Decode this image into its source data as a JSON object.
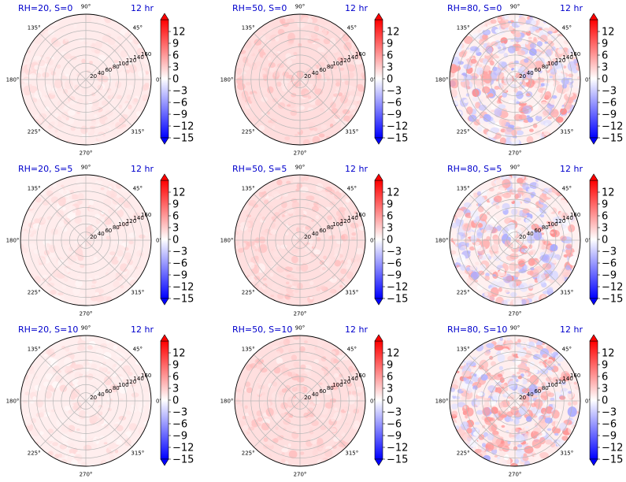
{
  "figure": {
    "colormap": "bwr",
    "colors": {
      "negative": "#0000ff",
      "zero": "#ffffff",
      "positive": "#ff0000",
      "title": "#0000cc",
      "grid": "#b8b8b8"
    }
  },
  "chart_data": [
    {
      "type": "heatmap",
      "projection": "polar",
      "title_left": "RH=20, S=0",
      "title_right": "12 hr",
      "bias": 1.2,
      "amplitude": 1.0,
      "angle_labels": [
        "0°",
        "45°",
        "90°",
        "135°",
        "180°",
        "225°",
        "270°",
        "315°"
      ],
      "radial_ticks": [
        20,
        40,
        60,
        80,
        100,
        120,
        140,
        160
      ],
      "rlim": [
        0,
        160
      ],
      "colorbar": {
        "ticks": [
          "12",
          "9",
          "6",
          "3",
          "0",
          "−3",
          "−6",
          "−9",
          "−12",
          "−15"
        ],
        "vmin": -15,
        "vmax": 15
      }
    },
    {
      "type": "heatmap",
      "projection": "polar",
      "title_left": "RH=50, S=0",
      "title_right": "12 hr",
      "bias": 2.0,
      "amplitude": 1.5,
      "angle_labels": [
        "0°",
        "45°",
        "90°",
        "135°",
        "180°",
        "225°",
        "270°",
        "315°"
      ],
      "radial_ticks": [
        20,
        40,
        60,
        80,
        100,
        120,
        140,
        160
      ],
      "rlim": [
        0,
        160
      ],
      "colorbar": {
        "ticks": [
          "12",
          "9",
          "6",
          "3",
          "0",
          "−3",
          "−6",
          "−9",
          "−12",
          "−15"
        ],
        "vmin": -15,
        "vmax": 15
      }
    },
    {
      "type": "heatmap",
      "projection": "polar",
      "title_left": "RH=80, S=0",
      "title_right": "12 hr",
      "bias": 0.8,
      "amplitude": 6.0,
      "angle_labels": [
        "0°",
        "45°",
        "90°",
        "135°",
        "180°",
        "225°",
        "270°",
        "315°"
      ],
      "radial_ticks": [
        20,
        40,
        60,
        80,
        100,
        120,
        140,
        160
      ],
      "rlim": [
        0,
        160
      ],
      "colorbar": {
        "ticks": [
          "12",
          "9",
          "6",
          "3",
          "0",
          "−3",
          "−6",
          "−9",
          "−12",
          "−15"
        ],
        "vmin": -15,
        "vmax": 15
      }
    },
    {
      "type": "heatmap",
      "projection": "polar",
      "title_left": "RH=20, S=5",
      "title_right": "12 hr",
      "bias": 1.1,
      "amplitude": 1.0,
      "angle_labels": [
        "0°",
        "45°",
        "90°",
        "135°",
        "180°",
        "225°",
        "270°",
        "315°"
      ],
      "radial_ticks": [
        20,
        40,
        60,
        80,
        100,
        120,
        140,
        160
      ],
      "rlim": [
        0,
        160
      ],
      "colorbar": {
        "ticks": [
          "12",
          "9",
          "6",
          "3",
          "0",
          "−3",
          "−6",
          "−9",
          "−12",
          "−15"
        ],
        "vmin": -15,
        "vmax": 15
      }
    },
    {
      "type": "heatmap",
      "projection": "polar",
      "title_left": "RH=50, S=5",
      "title_right": "12 hr",
      "bias": 1.9,
      "amplitude": 1.6,
      "angle_labels": [
        "0°",
        "45°",
        "90°",
        "135°",
        "180°",
        "225°",
        "270°",
        "315°"
      ],
      "radial_ticks": [
        20,
        40,
        60,
        80,
        100,
        120,
        140,
        160
      ],
      "rlim": [
        0,
        160
      ],
      "colorbar": {
        "ticks": [
          "12",
          "9",
          "6",
          "3",
          "0",
          "−3",
          "−6",
          "−9",
          "−12",
          "−15"
        ],
        "vmin": -15,
        "vmax": 15
      }
    },
    {
      "type": "heatmap",
      "projection": "polar",
      "title_left": "RH=80, S=5",
      "title_right": "12 hr",
      "bias": 0.9,
      "amplitude": 6.0,
      "angle_labels": [
        "0°",
        "45°",
        "90°",
        "135°",
        "180°",
        "225°",
        "270°",
        "315°"
      ],
      "radial_ticks": [
        20,
        40,
        60,
        80,
        100,
        120,
        140,
        160
      ],
      "rlim": [
        0,
        160
      ],
      "colorbar": {
        "ticks": [
          "12",
          "9",
          "6",
          "3",
          "0",
          "−3",
          "−6",
          "−9",
          "−12",
          "−15"
        ],
        "vmin": -15,
        "vmax": 15
      }
    },
    {
      "type": "heatmap",
      "projection": "polar",
      "title_left": "RH=20, S=10",
      "title_right": "12 hr",
      "bias": 1.0,
      "amplitude": 1.1,
      "angle_labels": [
        "0°",
        "45°",
        "90°",
        "135°",
        "180°",
        "225°",
        "270°",
        "315°"
      ],
      "radial_ticks": [
        20,
        40,
        60,
        80,
        100,
        120,
        140,
        160
      ],
      "rlim": [
        0,
        160
      ],
      "colorbar": {
        "ticks": [
          "12",
          "9",
          "6",
          "3",
          "0",
          "−3",
          "−6",
          "−9",
          "−12",
          "−15"
        ],
        "vmin": -15,
        "vmax": 15
      }
    },
    {
      "type": "heatmap",
      "projection": "polar",
      "title_left": "RH=50, S=10",
      "title_right": "12 hr",
      "bias": 1.9,
      "amplitude": 1.6,
      "angle_labels": [
        "0°",
        "45°",
        "90°",
        "135°",
        "180°",
        "225°",
        "270°",
        "315°"
      ],
      "radial_ticks": [
        20,
        40,
        60,
        80,
        100,
        120,
        140,
        160
      ],
      "rlim": [
        0,
        160
      ],
      "colorbar": {
        "ticks": [
          "12",
          "9",
          "6",
          "3",
          "0",
          "−3",
          "−6",
          "−9",
          "−12",
          "−15"
        ],
        "vmin": -15,
        "vmax": 15
      }
    },
    {
      "type": "heatmap",
      "projection": "polar",
      "title_left": "RH=80, S=10",
      "title_right": "12 hr",
      "bias": 1.0,
      "amplitude": 6.0,
      "angle_labels": [
        "0°",
        "45°",
        "90°",
        "135°",
        "180°",
        "225°",
        "270°",
        "315°"
      ],
      "radial_ticks": [
        20,
        40,
        60,
        80,
        100,
        120,
        140,
        160
      ],
      "rlim": [
        0,
        160
      ],
      "colorbar": {
        "ticks": [
          "12",
          "9",
          "6",
          "3",
          "0",
          "−3",
          "−6",
          "−9",
          "−12",
          "−15"
        ],
        "vmin": -15,
        "vmax": 15
      }
    }
  ]
}
